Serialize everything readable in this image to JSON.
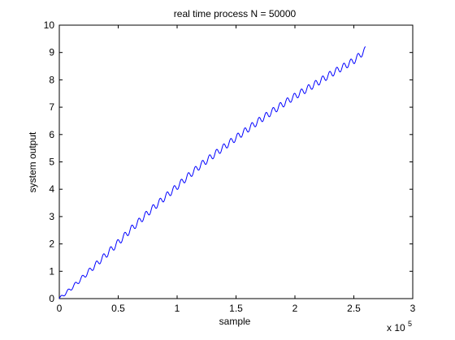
{
  "chart_data": {
    "type": "line",
    "title": "real time process N = 50000",
    "xlabel": "sample",
    "ylabel": "system output",
    "x_exponent_label": "x 10",
    "x_exponent_power": "5",
    "xlim": [
      0,
      3
    ],
    "ylim": [
      0,
      10
    ],
    "xticks": [
      "0",
      "0.5",
      "1",
      "1.5",
      "2",
      "2.5",
      "3"
    ],
    "xtick_values": [
      0,
      0.5,
      1,
      1.5,
      2,
      2.5,
      3
    ],
    "yticks": [
      "0",
      "1",
      "2",
      "3",
      "4",
      "5",
      "6",
      "7",
      "8",
      "9",
      "10"
    ],
    "ytick_values": [
      0,
      1,
      2,
      3,
      4,
      5,
      6,
      7,
      8,
      9,
      10
    ],
    "grid": false,
    "line_color": "#0000ff",
    "series": [
      {
        "x_units": "x 10^5 samples",
        "trend_x": [
          0,
          0.1,
          0.2,
          0.3,
          0.4,
          0.5,
          0.6,
          0.7,
          0.8,
          0.9,
          1.0,
          1.1,
          1.2,
          1.3,
          1.4,
          1.5,
          1.6,
          1.7,
          1.8,
          1.9,
          2.0,
          2.1,
          2.2,
          2.3,
          2.4,
          2.5,
          2.6
        ],
        "trend_y": [
          0,
          0.37,
          0.78,
          1.2,
          1.62,
          2.05,
          2.5,
          2.92,
          3.33,
          3.72,
          4.1,
          4.5,
          4.88,
          5.22,
          5.55,
          5.88,
          6.2,
          6.52,
          6.82,
          7.12,
          7.4,
          7.66,
          7.92,
          8.2,
          8.45,
          8.7,
          9.1
        ],
        "ripple_period": 0.06,
        "ripple_amplitude": 0.12
      }
    ]
  }
}
